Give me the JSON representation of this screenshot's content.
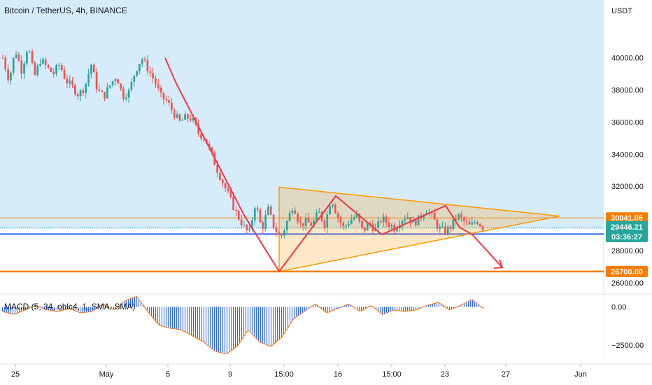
{
  "title": "Bitcoin / TetherUS, 4h, BINANCE",
  "macd_title": "MACD (5, 34, ohlc4, 1, SMA, SMA)",
  "chart_data": [
    {
      "type": "candlestick",
      "y_axis_unit": "USDT",
      "y_ticks": [
        "40000.00",
        "38000.00",
        "36000.00",
        "34000.00",
        "32000.00",
        "28000.00",
        "26000.00"
      ],
      "y_tick_values": [
        40000,
        38000,
        36000,
        34000,
        32000,
        28000,
        26000
      ],
      "ylim": [
        25300,
        43600
      ],
      "x_ticks": [
        "25",
        "May",
        "5",
        "9",
        "15:00",
        "16",
        "15:00",
        "23",
        "27",
        "Jun"
      ],
      "price_points": [
        [
          40000,
          38600,
          40500,
          39200,
          40800,
          38800,
          39900,
          39400,
          39000,
          39600
        ],
        [
          38600,
          38200,
          37700,
          38200,
          39600,
          38000,
          37600,
          38300,
          38900,
          37600
        ],
        [
          37900,
          39200,
          40000,
          39300,
          38600,
          37600,
          37300,
          36600,
          36000,
          36300
        ],
        [
          36200,
          35300,
          35000,
          34000,
          33000,
          32100,
          31200,
          30300,
          29600,
          29000
        ],
        [
          31000,
          29300,
          30600,
          29400,
          28800,
          29800,
          30900,
          29600,
          29800,
          29600
        ],
        [
          30400,
          29600,
          31300,
          30100,
          29400,
          29900,
          30200,
          29200,
          29700,
          29300
        ],
        [
          30000,
          29700,
          29400,
          29900,
          30200,
          29700,
          30000,
          30600,
          30100,
          29400
        ],
        [
          29200,
          29500,
          30200,
          29800,
          29500,
          29900,
          29446
        ]
      ],
      "markers": {
        "current_price": "29446.21",
        "countdown": "03:36:27",
        "level_upper": "30041.06",
        "level_lower": "26700.00",
        "level_upper_value": 30041.06,
        "level_lower_value": 26700,
        "blue_line_value": 29030
      },
      "colors": {
        "up": "#26a69a",
        "down": "#ef5350",
        "triangle": "#ff9800",
        "zigzag": "#f23645",
        "level": "#f57c00",
        "blue_line": "#2962ff",
        "current_price": "#26a69a",
        "highlight_zone": "#d6ecfb"
      }
    },
    {
      "type": "histogram",
      "title": "MACD (5, 34, ohlc4, 1, SMA, SMA)",
      "y_ticks": [
        "0.00",
        "−2500.00"
      ],
      "y_tick_values": [
        0,
        -2500
      ],
      "ylim": [
        -3700,
        800
      ],
      "values": [
        -300,
        -500,
        -200,
        100,
        -200,
        -300,
        -100,
        -400,
        -300,
        200,
        -200,
        400,
        700,
        -300,
        -1200,
        -1400,
        -1500,
        -1900,
        -2300,
        -2900,
        -3100,
        -2600,
        -1500,
        -2300,
        -2600,
        -2000,
        -800,
        -300,
        200,
        -400,
        -100,
        200,
        -300,
        100,
        -500,
        -200,
        -300,
        -200,
        100,
        300,
        -200,
        100,
        500,
        -100
      ]
    }
  ]
}
